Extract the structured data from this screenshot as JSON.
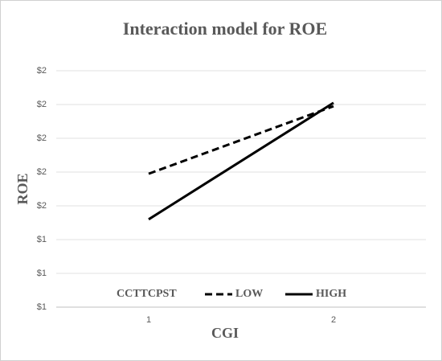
{
  "chart_data": {
    "type": "line",
    "title": "Interaction model for ROE",
    "x_label": "CGI",
    "y_label": "ROE",
    "categories": [
      "1",
      "2"
    ],
    "legend_title": "CCTTCPST",
    "legend": "bottom",
    "grid": true,
    "series": [
      {
        "name": "LOW",
        "color": "#000000",
        "line_style": "dashed",
        "values": [
          1.79,
          2.19
        ]
      },
      {
        "name": "HIGH",
        "color": "#000000",
        "line_style": "solid",
        "values": [
          1.52,
          2.21
        ]
      }
    ],
    "ylim": [
      1.0,
      2.4
    ],
    "yticks": [
      {
        "value": 1.0,
        "label": "$1"
      },
      {
        "value": 1.2,
        "label": "$1"
      },
      {
        "value": 1.4,
        "label": "$1"
      },
      {
        "value": 1.6,
        "label": "$2"
      },
      {
        "value": 1.8,
        "label": "$2"
      },
      {
        "value": 2.0,
        "label": "$2"
      },
      {
        "value": 2.2,
        "label": "$2"
      },
      {
        "value": 2.4,
        "label": "$2"
      }
    ]
  }
}
